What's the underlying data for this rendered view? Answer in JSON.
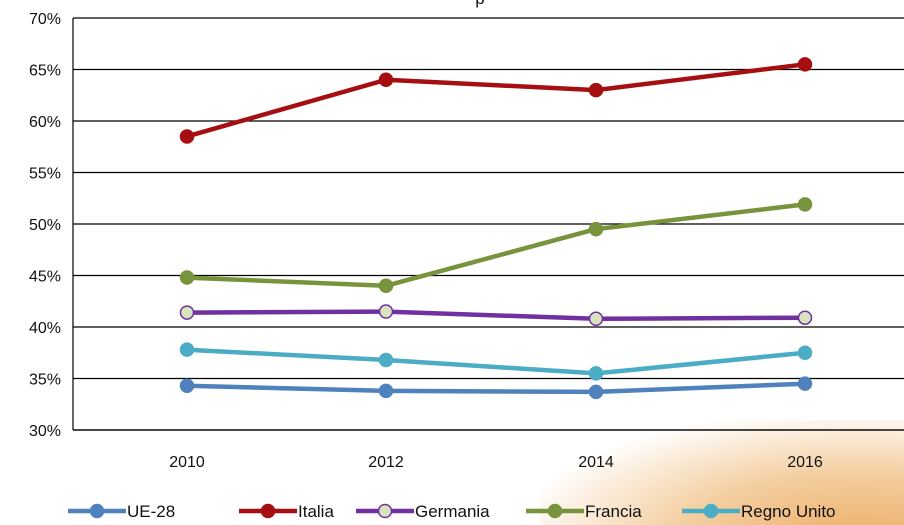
{
  "chart_data": {
    "type": "line",
    "title": "p",
    "x": [
      2010,
      2012,
      2014,
      2016
    ],
    "xlabel": "",
    "ylabel": "",
    "ylim": [
      0.3,
      0.7
    ],
    "yticks": [
      "30%",
      "35%",
      "40%",
      "45%",
      "50%",
      "55%",
      "60%",
      "65%",
      "70%"
    ],
    "grid": true,
    "legend_position": "bottom",
    "series": [
      {
        "name": "UE-28",
        "values": [
          0.343,
          0.338,
          0.337,
          0.345
        ],
        "color": "#4f81bd",
        "marker_fill": "#4f81bd"
      },
      {
        "name": "Italia",
        "values": [
          0.585,
          0.64,
          0.63,
          0.655
        ],
        "color": "#a50f12",
        "marker_fill": "#a50f12"
      },
      {
        "name": "Germania",
        "values": [
          0.414,
          0.415,
          0.408,
          0.409
        ],
        "color": "#7030a0",
        "marker_fill": "#d7e4bd"
      },
      {
        "name": "Francia",
        "values": [
          0.448,
          0.44,
          0.495,
          0.519
        ],
        "color": "#77933c",
        "marker_fill": "#77933c"
      },
      {
        "name": "Regno Unito",
        "values": [
          0.378,
          0.368,
          0.355,
          0.375
        ],
        "color": "#4bacc6",
        "marker_fill": "#4bacc6"
      }
    ]
  }
}
